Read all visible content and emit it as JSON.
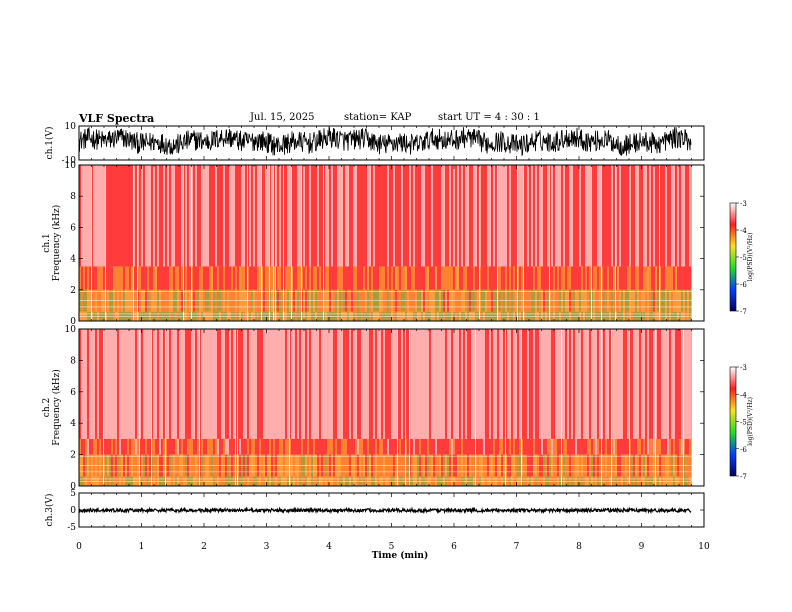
{
  "header": {
    "title": "VLF Spectra",
    "date": "Jul. 15, 2025",
    "station": "station= KAP",
    "start_ut": "start UT =  4 : 30 : 1"
  },
  "colors": {
    "background": "#ffffff",
    "axis": "#000000",
    "colormap_stops": [
      "#ffffff",
      "#ff2020",
      "#ffe020",
      "#20e020",
      "#0040ff",
      "#000060"
    ]
  },
  "chart_data": [
    {
      "id": "ch1-waveform",
      "type": "line",
      "ylabel": "ch.1(V)",
      "ylim": [
        -10,
        10
      ],
      "xlim": [
        0,
        10
      ],
      "yticks": [
        10,
        -10
      ],
      "data_extent_min": [
        0,
        9.8
      ],
      "description_values": {
        "typical_range_v": [
          -6,
          8
        ]
      }
    },
    {
      "id": "ch1-spectrogram",
      "type": "heatmap",
      "ylabel": "ch.1  Frequency (kHz)",
      "ylim": [
        0,
        10
      ],
      "xlim": [
        0,
        10
      ],
      "yticks": [
        0,
        2,
        4,
        6,
        8,
        10
      ],
      "data_extent_min": [
        0,
        9.8
      ],
      "colorbar": {
        "label": "log(PSD)(V²/Hz)",
        "ticks": [
          -3,
          -4,
          -5,
          -6,
          -7
        ],
        "range": [
          -7,
          -3
        ]
      },
      "bands": [
        {
          "f_khz": [
            0.0,
            0.6
          ],
          "level": -5.2
        },
        {
          "f_khz": [
            0.6,
            2.0
          ],
          "level": -4.8
        },
        {
          "f_khz": [
            2.0,
            3.5
          ],
          "level": -4.2
        },
        {
          "f_khz": [
            3.5,
            10.0
          ],
          "level": -3.7
        }
      ]
    },
    {
      "id": "ch2-spectrogram",
      "type": "heatmap",
      "ylabel": "ch.2  Frequency (kHz)",
      "ylim": [
        0,
        10
      ],
      "xlim": [
        0,
        10
      ],
      "yticks": [
        0,
        2,
        4,
        6,
        8,
        10
      ],
      "data_extent_min": [
        0,
        9.8
      ],
      "colorbar": {
        "label": "log(PSD)(V²/Hz)",
        "ticks": [
          -3,
          -4,
          -5,
          -6,
          -7
        ],
        "range": [
          -7,
          -3
        ]
      },
      "bands": [
        {
          "f_khz": [
            0.0,
            0.6
          ],
          "level": -4.9
        },
        {
          "f_khz": [
            0.6,
            2.0
          ],
          "level": -4.6
        },
        {
          "f_khz": [
            2.0,
            3.0
          ],
          "level": -4.1
        },
        {
          "f_khz": [
            3.0,
            10.0
          ],
          "level": -3.4
        }
      ]
    },
    {
      "id": "ch3-waveform",
      "type": "line",
      "ylabel": "ch.3(V)",
      "ylim": [
        -5,
        5
      ],
      "xlim": [
        0,
        10
      ],
      "yticks": [
        5,
        0,
        -5
      ],
      "data_extent_min": [
        0,
        9.8
      ],
      "description_values": {
        "typical_range_v": [
          -0.6,
          0.4
        ]
      }
    }
  ],
  "xaxis": {
    "label": "Time (min)",
    "ticks": [
      "0",
      "1",
      "2",
      "3",
      "4",
      "5",
      "6",
      "7",
      "8",
      "9",
      "10"
    ]
  }
}
